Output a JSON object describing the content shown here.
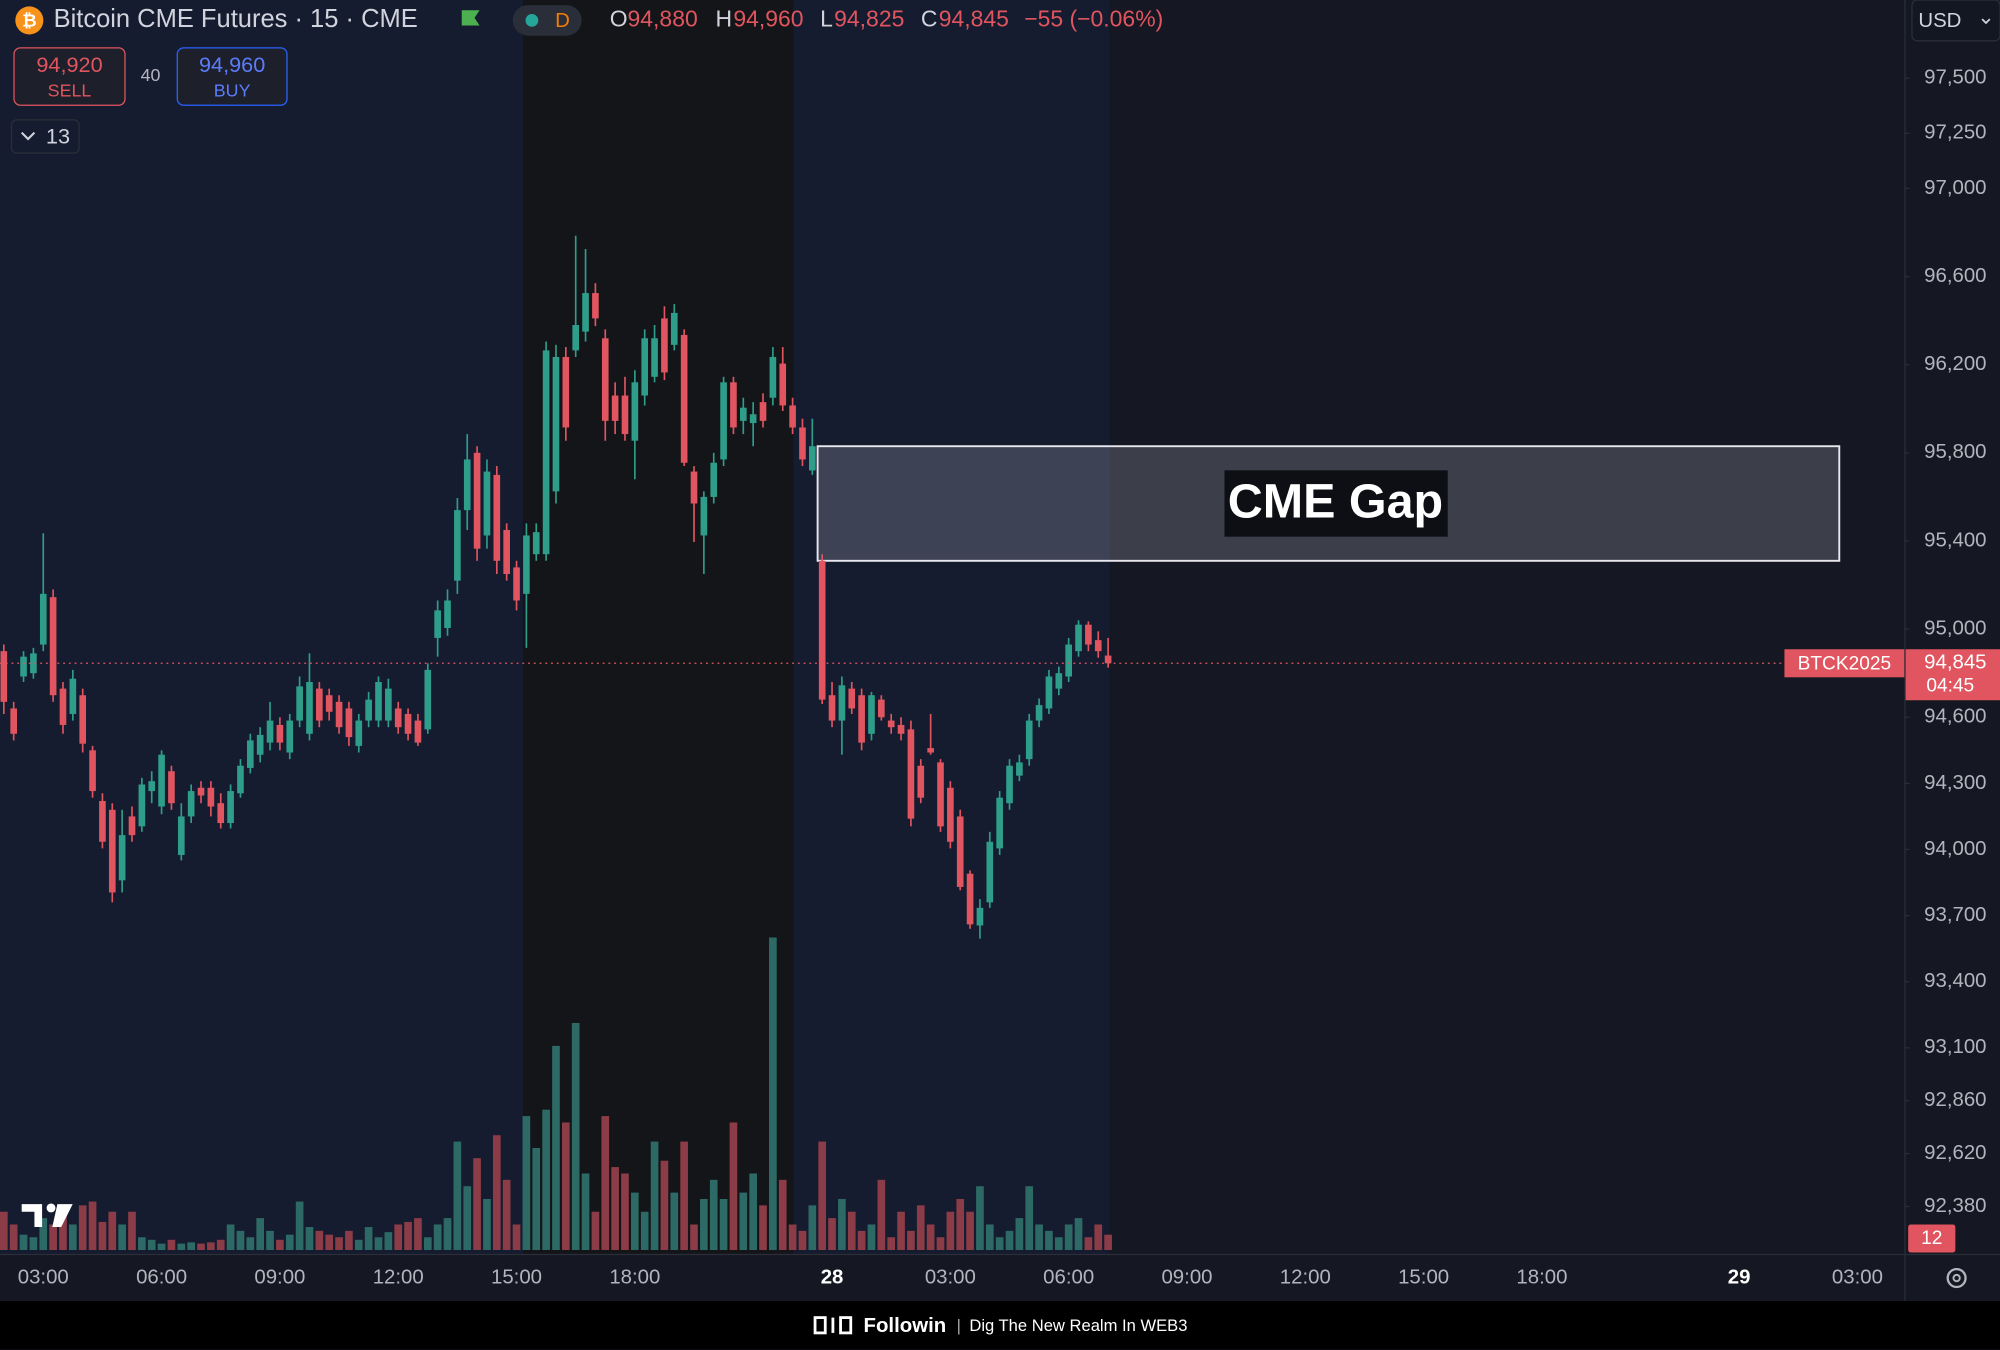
{
  "header": {
    "title": "Bitcoin CME Futures · 15 · CME",
    "interval": "D",
    "ohlc": [
      {
        "key": "O",
        "value": "94,880"
      },
      {
        "key": "H",
        "value": "94,960"
      },
      {
        "key": "L",
        "value": "94,825"
      },
      {
        "key": "C",
        "value": "94,845"
      }
    ],
    "change": "−55 (−0.06%)"
  },
  "trade": {
    "sell_price": "94,920",
    "sell": "SELL",
    "spread": "40",
    "buy_price": "94,960",
    "buy": "BUY"
  },
  "indicators": "13",
  "currency": "USD",
  "badge": "12",
  "footer": {
    "brand": "Followin",
    "separator": "|",
    "tagline": "Dig The New Realm In WEB3"
  },
  "chart_data": {
    "type": "candlestick",
    "categories": [
      null,
      null,
      null,
      null,
      "03:00",
      null,
      null,
      null,
      null,
      null,
      null,
      null,
      null,
      null,
      null,
      null,
      "06:00",
      null,
      null,
      null,
      null,
      null,
      null,
      null,
      null,
      null,
      null,
      null,
      "09:00",
      null,
      null,
      null,
      null,
      null,
      null,
      null,
      null,
      null,
      null,
      null,
      "12:00",
      null,
      null,
      null,
      null,
      null,
      null,
      null,
      null,
      null,
      null,
      null,
      "15:00",
      null,
      null,
      null,
      null,
      null,
      null,
      null,
      null,
      null,
      null,
      null,
      "18:00",
      null,
      null,
      null,
      null,
      null,
      null,
      null,
      null,
      null,
      null,
      null,
      null,
      null,
      null,
      null,
      null,
      null,
      null,
      null,
      "28",
      null,
      null,
      null,
      null,
      null,
      null,
      null,
      null,
      null,
      null,
      null,
      "03:00",
      null,
      null,
      null,
      null,
      null,
      null,
      null,
      null,
      null,
      null,
      null,
      "06:00",
      null,
      null,
      null,
      null,
      null,
      null,
      null,
      null,
      null,
      null,
      null,
      "09:00",
      null,
      null,
      null,
      null,
      null,
      null,
      null,
      null,
      null,
      null,
      null,
      "12:00",
      null,
      null,
      null,
      null,
      null,
      null,
      null,
      null,
      null,
      null,
      null,
      "15:00",
      null,
      null,
      null,
      null,
      null,
      null,
      null,
      null,
      null,
      null,
      null,
      "18:00",
      null,
      null,
      null,
      null,
      null,
      null,
      null,
      null,
      null,
      null,
      null,
      null,
      null,
      null,
      null,
      null,
      null,
      null,
      null,
      "29",
      null,
      null,
      null,
      null,
      null,
      null,
      null,
      null,
      null,
      null,
      null,
      "03:00",
      null
    ],
    "open": [
      94900,
      94640,
      94785,
      94800,
      94930,
      95145,
      94730,
      94615,
      94700,
      94450,
      94220,
      94180,
      93860,
      94150,
      94105,
      94265,
      94195,
      94355,
      93975,
      94150,
      94280,
      94280,
      94210,
      94120,
      94255,
      94370,
      94430,
      94485,
      94565,
      94440,
      94585,
      94525,
      94730,
      94700,
      94670,
      94640,
      94470,
      94585,
      94585,
      94585,
      94640,
      94615,
      94585,
      94545,
      94960,
      95005,
      95220,
      95540,
      95800,
      95425,
      95700,
      95450,
      95280,
      95160,
      95340,
      95340,
      95625,
      96235,
      96265,
      96350,
      96525,
      96320,
      96060,
      96060,
      95855,
      96060,
      96145,
      96410,
      96290,
      96335,
      95715,
      95425,
      95600,
      95770,
      96120,
      95945,
      95935,
      96030,
      96050,
      96205,
      96015,
      95915,
      95720,
      95310,
      94700,
      94585,
      94730,
      94700,
      94525,
      94680,
      94585,
      94565,
      94545,
      94380,
      94460,
      94395,
      94280,
      94150,
      93890,
      93655,
      93760,
      94005,
      94210,
      94335,
      94410,
      94585,
      94640,
      94730,
      94785,
      94900,
      95020,
      94950,
      94880,
      null,
      null,
      null,
      null,
      null,
      null,
      null,
      null,
      null,
      null,
      null,
      null,
      null,
      null,
      null,
      null,
      null,
      null,
      null,
      null,
      null,
      null,
      null,
      null,
      null,
      null,
      null,
      null,
      null,
      null,
      null,
      null,
      null,
      null,
      null,
      null,
      null,
      null,
      null,
      null,
      null,
      null,
      null,
      null,
      null,
      null,
      null,
      null,
      null,
      null,
      null,
      null,
      null,
      null,
      null,
      null,
      null,
      null,
      null,
      null,
      null,
      null,
      null,
      null,
      null,
      null,
      null,
      null,
      null,
      null,
      null,
      null,
      null,
      null,
      null,
      null,
      null
    ],
    "high": [
      94930,
      94670,
      94900,
      94915,
      95435,
      95180,
      94760,
      94815,
      94730,
      94470,
      94255,
      94210,
      94180,
      94195,
      94325,
      94355,
      94450,
      94380,
      94210,
      94295,
      94310,
      94310,
      94255,
      94295,
      94410,
      94525,
      94555,
      94670,
      94600,
      94615,
      94785,
      94890,
      94760,
      94730,
      94700,
      94670,
      94615,
      94715,
      94785,
      94775,
      94670,
      94640,
      94615,
      94845,
      95130,
      95180,
      95595,
      95885,
      95830,
      95770,
      95740,
      95480,
      95310,
      95480,
      95480,
      96305,
      96290,
      96280,
      96785,
      96725,
      96570,
      96360,
      96120,
      96145,
      96175,
      96360,
      96380,
      96465,
      96475,
      96360,
      95740,
      95625,
      95800,
      96145,
      96145,
      96050,
      96030,
      96070,
      96280,
      96280,
      96050,
      95955,
      95955,
      95340,
      94760,
      94785,
      94760,
      94730,
      94715,
      94700,
      94615,
      94600,
      94585,
      94410,
      94615,
      94410,
      94310,
      94180,
      93905,
      93775,
      94080,
      94265,
      94410,
      94430,
      94615,
      94685,
      94815,
      94830,
      94960,
      95040,
      95035,
      94990,
      94960,
      null,
      null,
      null,
      null,
      null,
      null,
      null,
      null,
      null,
      null,
      null,
      null,
      null,
      null,
      null,
      null,
      null,
      null,
      null,
      null,
      null,
      null,
      null,
      null,
      null,
      null,
      null,
      null,
      null,
      null,
      null,
      null,
      null,
      null,
      null,
      null,
      null,
      null,
      null,
      null,
      null,
      null,
      null,
      null,
      null,
      null,
      null,
      null,
      null,
      null,
      null,
      null,
      null,
      null,
      null,
      null,
      null,
      null,
      null,
      null,
      null,
      null,
      null,
      null,
      null,
      null,
      null,
      null,
      null,
      null,
      null,
      null,
      null,
      null,
      null,
      null,
      null
    ],
    "low": [
      94615,
      94495,
      94760,
      94775,
      94900,
      94670,
      94525,
      94585,
      94440,
      94235,
      94005,
      93760,
      93805,
      94035,
      94080,
      94210,
      94160,
      94180,
      93950,
      94120,
      94210,
      94150,
      94095,
      94095,
      94235,
      94345,
      94395,
      94450,
      94450,
      94410,
      94555,
      94495,
      94555,
      94585,
      94525,
      94470,
      94440,
      94555,
      94555,
      94555,
      94525,
      94495,
      94470,
      94525,
      94875,
      94970,
      95160,
      95450,
      95310,
      95365,
      95250,
      95220,
      95085,
      94915,
      95310,
      95310,
      95570,
      95855,
      96235,
      96305,
      96375,
      95855,
      95885,
      95855,
      95680,
      96015,
      96120,
      96130,
      96265,
      95740,
      95395,
      95250,
      95570,
      95740,
      95885,
      95885,
      95830,
      95915,
      96015,
      95990,
      95885,
      95740,
      95700,
      94660,
      94555,
      94430,
      94615,
      94450,
      94495,
      94585,
      94525,
      94495,
      94105,
      94210,
      94430,
      94080,
      94005,
      93815,
      93640,
      93595,
      93735,
      93975,
      94180,
      94310,
      94380,
      94555,
      94615,
      94700,
      94760,
      94875,
      94900,
      94870,
      94825,
      null,
      null,
      null,
      null,
      null,
      null,
      null,
      null,
      null,
      null,
      null,
      null,
      null,
      null,
      null,
      null,
      null,
      null,
      null,
      null,
      null,
      null,
      null,
      null,
      null,
      null,
      null,
      null,
      null,
      null,
      null,
      null,
      null,
      null,
      null,
      null,
      null,
      null,
      null,
      null,
      null,
      null,
      null,
      null,
      null,
      null,
      null,
      null,
      null,
      null,
      null,
      null,
      null,
      null,
      null,
      null,
      null,
      null,
      null,
      null,
      null,
      null,
      null,
      null,
      null,
      null,
      null,
      null,
      null,
      null,
      null,
      null,
      null,
      null,
      null,
      null,
      null
    ],
    "close": [
      94670,
      94525,
      94875,
      94890,
      95160,
      94700,
      94565,
      94775,
      94480,
      94265,
      94035,
      93805,
      94065,
      94065,
      94295,
      94310,
      94430,
      94210,
      94150,
      94265,
      94245,
      94195,
      94120,
      94265,
      94380,
      94495,
      94520,
      94585,
      94485,
      94585,
      94740,
      94760,
      94585,
      94625,
      94555,
      94510,
      94585,
      94680,
      94760,
      94730,
      94555,
      94525,
      94485,
      94815,
      95085,
      95130,
      95540,
      95770,
      95365,
      95715,
      95310,
      95250,
      95130,
      95425,
      95440,
      96265,
      96235,
      95915,
      96380,
      96525,
      96410,
      95945,
      95945,
      95885,
      96120,
      96320,
      96320,
      96165,
      96435,
      95755,
      95570,
      95600,
      95755,
      96120,
      95915,
      96005,
      95975,
      95945,
      96235,
      96015,
      95915,
      95770,
      95830,
      94680,
      94585,
      94745,
      94640,
      94485,
      94700,
      94600,
      94555,
      94525,
      94140,
      94235,
      94440,
      94105,
      94035,
      93830,
      93660,
      93735,
      94035,
      94235,
      94380,
      94395,
      94585,
      94655,
      94785,
      94800,
      94930,
      95020,
      94930,
      94900,
      94845,
      null,
      null,
      null,
      null,
      null,
      null,
      null,
      null,
      null,
      null,
      null,
      null,
      null,
      null,
      null,
      null,
      null,
      null,
      null,
      null,
      null,
      null,
      null,
      null,
      null,
      null,
      null,
      null,
      null,
      null,
      null,
      null,
      null,
      null,
      null,
      null,
      null,
      null,
      null,
      null,
      null,
      null,
      null,
      null,
      null,
      null,
      null,
      null,
      null,
      null,
      null,
      null,
      null,
      null,
      null,
      null,
      null,
      null,
      null,
      null,
      null,
      null,
      null,
      null,
      null,
      null,
      null,
      null,
      null,
      null,
      null,
      null,
      null,
      null,
      null,
      null,
      null
    ],
    "volume": [
      30,
      20,
      12,
      10,
      25,
      20,
      30,
      20,
      35,
      38,
      22,
      30,
      20,
      30,
      10,
      8,
      5,
      8,
      5,
      6,
      5,
      6,
      8,
      20,
      15,
      10,
      25,
      15,
      8,
      12,
      38,
      18,
      15,
      12,
      10,
      15,
      8,
      18,
      10,
      14,
      20,
      22,
      25,
      10,
      20,
      25,
      85,
      50,
      72,
      40,
      90,
      55,
      20,
      105,
      80,
      110,
      160,
      100,
      178,
      60,
      30,
      105,
      65,
      60,
      45,
      30,
      85,
      70,
      45,
      85,
      20,
      40,
      55,
      40,
      100,
      45,
      60,
      35,
      245,
      55,
      20,
      15,
      35,
      85,
      25,
      40,
      30,
      15,
      20,
      55,
      10,
      30,
      15,
      35,
      20,
      10,
      30,
      40,
      30,
      50,
      20,
      10,
      15,
      25,
      50,
      20,
      15,
      10,
      20,
      25,
      10,
      20,
      12,
      null,
      null,
      null,
      null,
      null,
      null,
      null,
      null,
      null,
      null,
      null,
      null,
      null,
      null,
      null,
      null,
      null,
      null,
      null,
      null,
      null,
      null,
      null,
      null,
      null,
      null,
      null,
      null,
      null,
      null,
      null,
      null,
      null,
      null,
      null,
      null,
      null,
      null,
      null,
      null,
      null,
      null,
      null,
      null,
      null,
      null,
      null,
      null,
      null,
      null,
      null,
      null,
      null,
      null,
      null,
      null,
      null,
      null,
      null,
      null,
      null,
      null,
      null,
      null,
      null,
      null,
      null,
      null,
      null,
      null,
      null,
      null,
      null,
      null,
      null,
      null,
      null
    ],
    "up_color": "#2e9e8a",
    "down_color": "#e0555f",
    "volume_up_color": "#2d6a66",
    "volume_down_color": "#8b3c46",
    "ylim": [
      92165,
      97855
    ],
    "yticks": [
      {
        "value": 97500,
        "label": "97,500"
      },
      {
        "value": 97250,
        "label": "97,250"
      },
      {
        "value": 97000,
        "label": "97,000"
      },
      {
        "value": 96600,
        "label": "96,600"
      },
      {
        "value": 96200,
        "label": "96,200"
      },
      {
        "value": 95800,
        "label": "95,800"
      },
      {
        "value": 95400,
        "label": "95,400"
      },
      {
        "value": 95000,
        "label": "95,000"
      },
      {
        "value": 94600,
        "label": "94,600"
      },
      {
        "value": 94300,
        "label": "94,300"
      },
      {
        "value": 94000,
        "label": "94,000"
      },
      {
        "value": 93700,
        "label": "93,700"
      },
      {
        "value": 93400,
        "label": "93,400"
      },
      {
        "value": 93100,
        "label": "93,100"
      },
      {
        "value": 92860,
        "label": "92,860"
      },
      {
        "value": 92620,
        "label": "92,620"
      },
      {
        "value": 92380,
        "label": "92,380"
      }
    ],
    "last_price": {
      "value": 94845,
      "label": "94,845",
      "countdown": "04:45",
      "symbol": "BTCK2025"
    },
    "annotations": [
      {
        "text": "CME Gap",
        "y0": 95310,
        "y1": 95830
      }
    ]
  }
}
